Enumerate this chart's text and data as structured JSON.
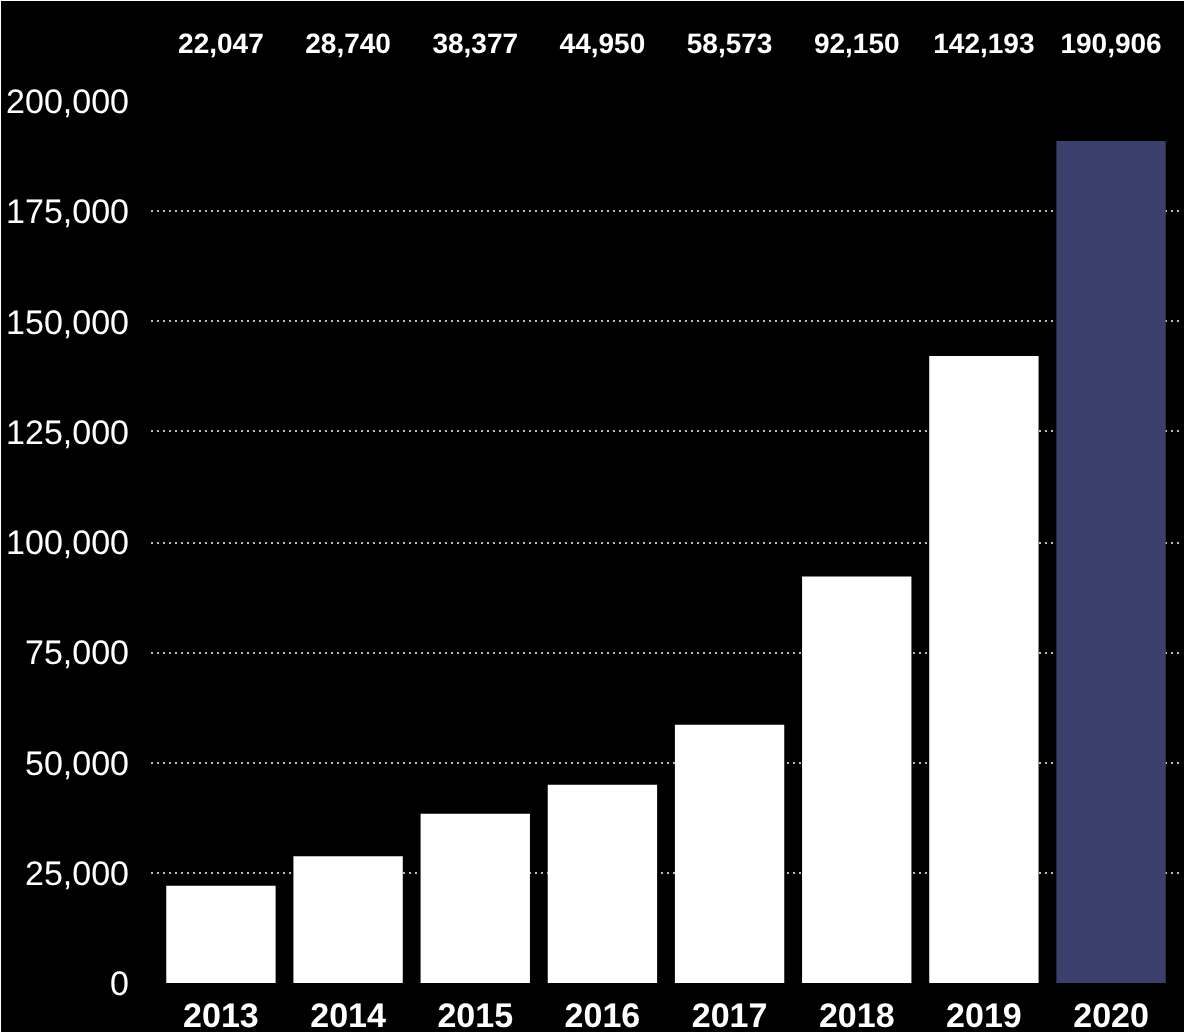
{
  "chart_data": {
    "type": "bar",
    "categories": [
      "2013",
      "2014",
      "2015",
      "2016",
      "2017",
      "2018",
      "2019",
      "2020"
    ],
    "values": [
      22047,
      28740,
      38377,
      44950,
      58573,
      92150,
      142193,
      190906
    ],
    "colors": [
      "#ffffff",
      "#ffffff",
      "#ffffff",
      "#ffffff",
      "#ffffff",
      "#ffffff",
      "#ffffff",
      "#3b3f6b"
    ],
    "ylim": [
      0,
      200000
    ],
    "yticks": [
      {
        "value": 0,
        "label": "0"
      },
      {
        "value": 25000,
        "label": "25,000"
      },
      {
        "value": 50000,
        "label": "50,000"
      },
      {
        "value": 75000,
        "label": "75,000"
      },
      {
        "value": 100000,
        "label": "100,000"
      },
      {
        "value": 125000,
        "label": "125,000"
      },
      {
        "value": 150000,
        "label": "150,000"
      },
      {
        "value": 175000,
        "label": "175,000"
      },
      {
        "value": 200000,
        "label": "200,000"
      }
    ],
    "value_labels": [
      "22,047",
      "28,740",
      "38,377",
      "44,950",
      "58,573",
      "92,150",
      "142,193",
      "190,906"
    ],
    "grid": "y"
  }
}
